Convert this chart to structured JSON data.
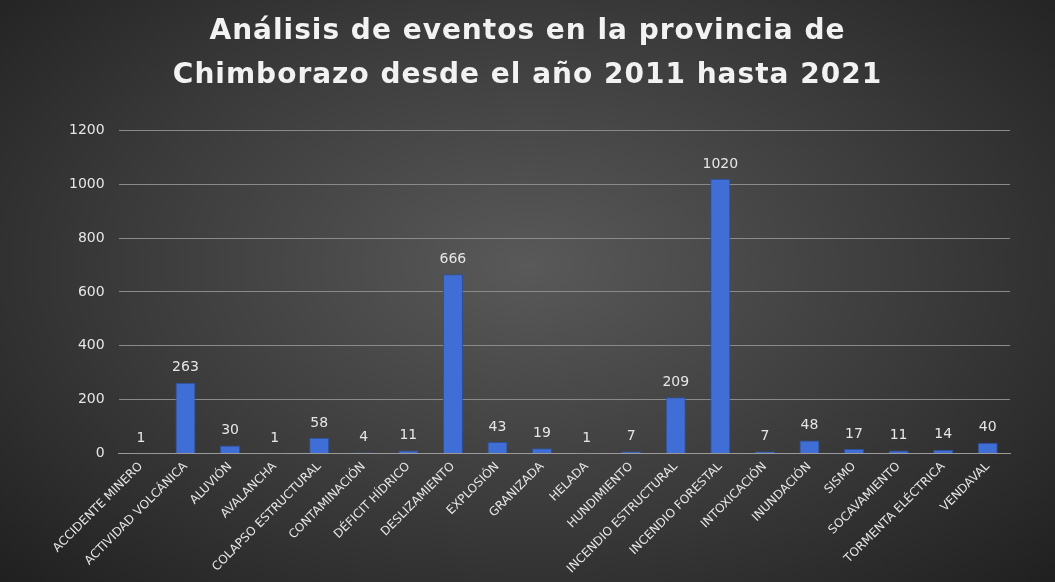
{
  "chart_data": {
    "type": "bar",
    "title": "Análisis de eventos en la provincia de Chimborazo desde el año 2011 hasta 2021",
    "categories": [
      "ACCIDENTE MINERO",
      "ACTIVIDAD VOLCÁNICA",
      "ALUVIÓN",
      "AVALANCHA",
      "COLAPSO ESTRUCTURAL",
      "CONTAMINACIÓN",
      "DÉFICIT HÍDRICO",
      "DESLIZAMIENTO",
      "EXPLOSIÓN",
      "GRANIZADA",
      "HELADA",
      "HUNDIMIENTO",
      "INCENDIO ESTRUCTURAL",
      "INCENDIO FORESTAL",
      "INTOXICACIÓN",
      "INUNDACIÓN",
      "SISMO",
      "SOCAVAMIENTO",
      "TORMENTA ELÉCTRICA",
      "VENDAVAL"
    ],
    "values": [
      1,
      263,
      30,
      1,
      58,
      4,
      11,
      666,
      43,
      19,
      1,
      7,
      209,
      1020,
      7,
      48,
      17,
      11,
      14,
      40
    ],
    "color": "#3f6fd6",
    "ylim": [
      0,
      1200
    ],
    "yticks": [
      0,
      200,
      400,
      600,
      800,
      1000,
      1200
    ],
    "grid": "y",
    "data_labels": true,
    "legend": false
  }
}
